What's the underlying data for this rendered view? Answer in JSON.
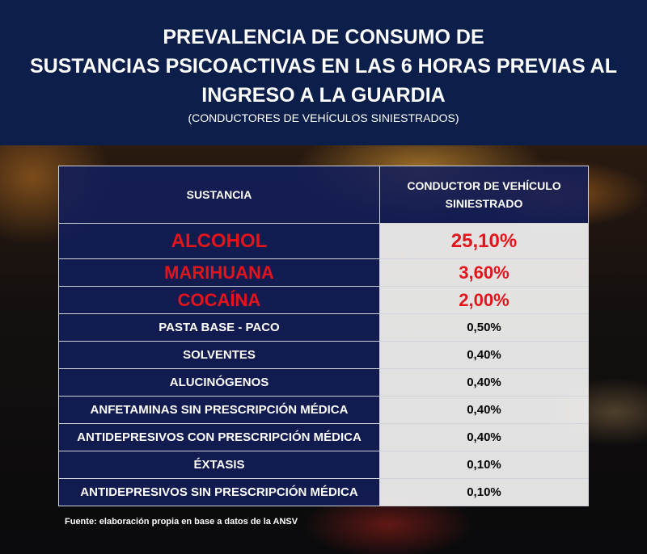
{
  "header": {
    "title_line1": "PREVALENCIA DE CONSUMO DE",
    "title_line2": "SUSTANCIAS PSICOACTIVAS EN LAS 6 HORAS PREVIAS AL",
    "title_line3": "INGRESO A LA GUARDIA",
    "subtitle": "(CONDUCTORES DE VEHÍCULOS SINIESTRADOS)"
  },
  "table": {
    "col1_header": "SUSTANCIA",
    "col2_header_line1": "CONDUCTOR DE VEHÍCULO",
    "col2_header_line2": "SINIESTRADO",
    "rows": [
      {
        "substance": "ALCOHOL",
        "value": "25,10%"
      },
      {
        "substance": "MARIHUANA",
        "value": "3,60%"
      },
      {
        "substance": "COCAÍNA",
        "value": "2,00%"
      },
      {
        "substance": "PASTA BASE - PACO",
        "value": "0,50%"
      },
      {
        "substance": "SOLVENTES",
        "value": "0,40%"
      },
      {
        "substance": "ALUCINÓGENOS",
        "value": "0,40%"
      },
      {
        "substance": "ANFETAMINAS SIN PRESCRIPCIÓN MÉDICA",
        "value": "0,40%"
      },
      {
        "substance": "ANTIDEPRESIVOS CON PRESCRIPCIÓN MÉDICA",
        "value": "0,40%"
      },
      {
        "substance": "ÉXTASIS",
        "value": "0,10%"
      },
      {
        "substance": "ANTIDEPRESIVOS SIN PRESCRIPCIÓN MÉDICA",
        "value": "0,10%"
      }
    ]
  },
  "footer": "Fuente: elaboración propia en base a datos de la ANSV",
  "colors": {
    "header_bg": "#0c1e4a",
    "highlight_red": "#e3141b",
    "cell_blue": "#121e5a"
  }
}
